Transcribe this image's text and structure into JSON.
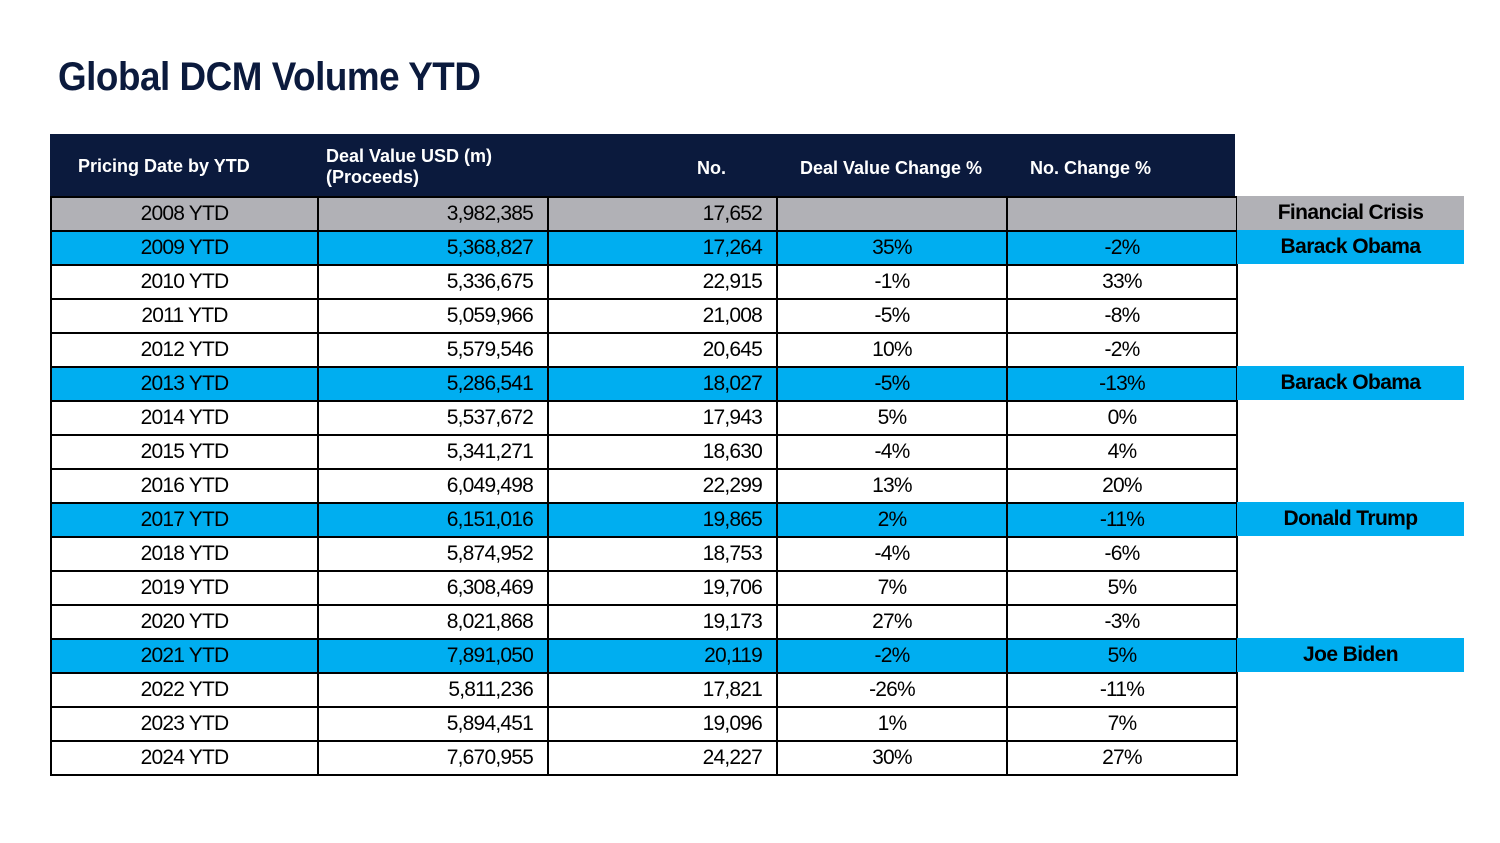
{
  "title": "Global DCM Volume YTD",
  "colors": {
    "header_bg": "#0b1a3d",
    "highlight_gray": "#b1b1b6",
    "highlight_blue": "#00aef0"
  },
  "headers": {
    "date": "Pricing Date by YTD",
    "value_line1": "Deal Value USD (m)",
    "value_line2": "(Proceeds)",
    "no": "No.",
    "dvc": "Deal Value Change %",
    "nc": "No. Change %"
  },
  "rows": [
    {
      "date": "2008 YTD",
      "value": "3,982,385",
      "no": "17,652",
      "dvc": "",
      "nc": "",
      "highlight": "gray",
      "note": "Financial Crisis"
    },
    {
      "date": "2009 YTD",
      "value": "5,368,827",
      "no": "17,264",
      "dvc": "35%",
      "nc": "-2%",
      "highlight": "blue",
      "note": "Barack Obama"
    },
    {
      "date": "2010 YTD",
      "value": "5,336,675",
      "no": "22,915",
      "dvc": "-1%",
      "nc": "33%",
      "highlight": "none",
      "note": ""
    },
    {
      "date": "2011 YTD",
      "value": "5,059,966",
      "no": "21,008",
      "dvc": "-5%",
      "nc": "-8%",
      "highlight": "none",
      "note": ""
    },
    {
      "date": "2012 YTD",
      "value": "5,579,546",
      "no": "20,645",
      "dvc": "10%",
      "nc": "-2%",
      "highlight": "none",
      "note": ""
    },
    {
      "date": "2013 YTD",
      "value": "5,286,541",
      "no": "18,027",
      "dvc": "-5%",
      "nc": "-13%",
      "highlight": "blue",
      "note": "Barack Obama"
    },
    {
      "date": "2014 YTD",
      "value": "5,537,672",
      "no": "17,943",
      "dvc": "5%",
      "nc": "0%",
      "highlight": "none",
      "note": ""
    },
    {
      "date": "2015 YTD",
      "value": "5,341,271",
      "no": "18,630",
      "dvc": "-4%",
      "nc": "4%",
      "highlight": "none",
      "note": ""
    },
    {
      "date": "2016 YTD",
      "value": "6,049,498",
      "no": "22,299",
      "dvc": "13%",
      "nc": "20%",
      "highlight": "none",
      "note": ""
    },
    {
      "date": "2017 YTD",
      "value": "6,151,016",
      "no": "19,865",
      "dvc": "2%",
      "nc": "-11%",
      "highlight": "blue",
      "note": "Donald Trump"
    },
    {
      "date": "2018 YTD",
      "value": "5,874,952",
      "no": "18,753",
      "dvc": "-4%",
      "nc": "-6%",
      "highlight": "none",
      "note": ""
    },
    {
      "date": "2019 YTD",
      "value": "6,308,469",
      "no": "19,706",
      "dvc": "7%",
      "nc": "5%",
      "highlight": "none",
      "note": ""
    },
    {
      "date": "2020 YTD",
      "value": "8,021,868",
      "no": "19,173",
      "dvc": "27%",
      "nc": "-3%",
      "highlight": "none",
      "note": ""
    },
    {
      "date": "2021 YTD",
      "value": "7,891,050",
      "no": "20,119",
      "dvc": "-2%",
      "nc": "5%",
      "highlight": "blue",
      "note": "Joe Biden"
    },
    {
      "date": "2022 YTD",
      "value": "5,811,236",
      "no": "17,821",
      "dvc": "-26%",
      "nc": "-11%",
      "highlight": "none",
      "note": ""
    },
    {
      "date": "2023 YTD",
      "value": "5,894,451",
      "no": "19,096",
      "dvc": "1%",
      "nc": "7%",
      "highlight": "none",
      "note": ""
    },
    {
      "date": "2024 YTD",
      "value": "7,670,955",
      "no": "24,227",
      "dvc": "30%",
      "nc": "27%",
      "highlight": "none",
      "note": ""
    }
  ]
}
